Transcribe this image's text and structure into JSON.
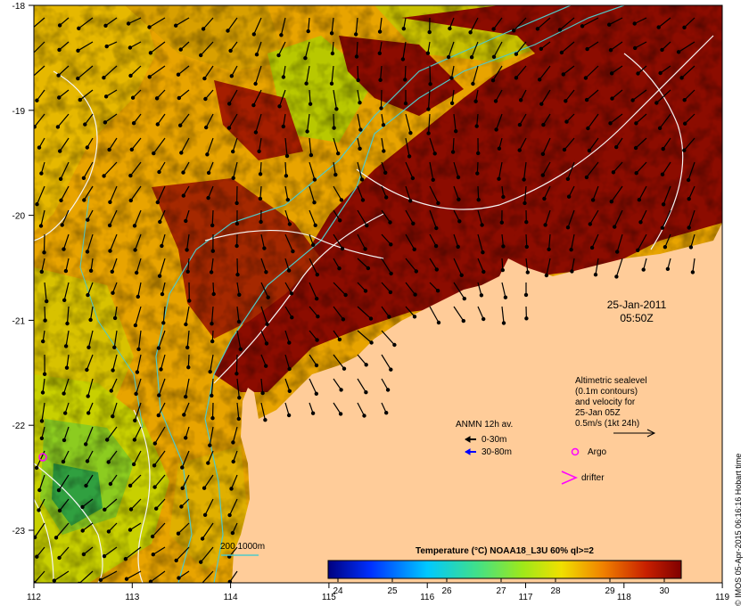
{
  "map": {
    "date_line1": "25-Jan-2011",
    "date_line2": "05:50Z",
    "x_ticks": [
      "112",
      "113",
      "114",
      "115",
      "116",
      "117",
      "118",
      "119"
    ],
    "y_ticks": [
      "-18",
      "-19",
      "-20",
      "-21",
      "-22",
      "-23"
    ],
    "sealevel_legend": {
      "line1": "Altimetric sealevel",
      "line2": "(0.1m contours)",
      "line3": "and velocity for",
      "line4": "25-Jan 05Z",
      "line5": "0.5m/s (1kt 24h)"
    },
    "anmn_legend": {
      "title": "ANMN 12h av.",
      "item1": "0-30m",
      "item2": "30-80m",
      "item1_color": "#000000",
      "item2_color": "#0000ff"
    },
    "argo_label": "Argo",
    "drifter_label": "drifter",
    "marker_color": "#ff00ff",
    "isobath_label": "200  1000m",
    "isobath_color": "#4fc9c9",
    "colorbar": {
      "title": "Temperature (°C) NOAA18_L3U 60% ql>=2",
      "ticks": [
        "24",
        "25",
        "26",
        "27",
        "28",
        "29",
        "30"
      ]
    },
    "land_color": "#ffcc99",
    "credit": "© IMOS 05-Apr-2015 06:16:16 Hobart time"
  }
}
